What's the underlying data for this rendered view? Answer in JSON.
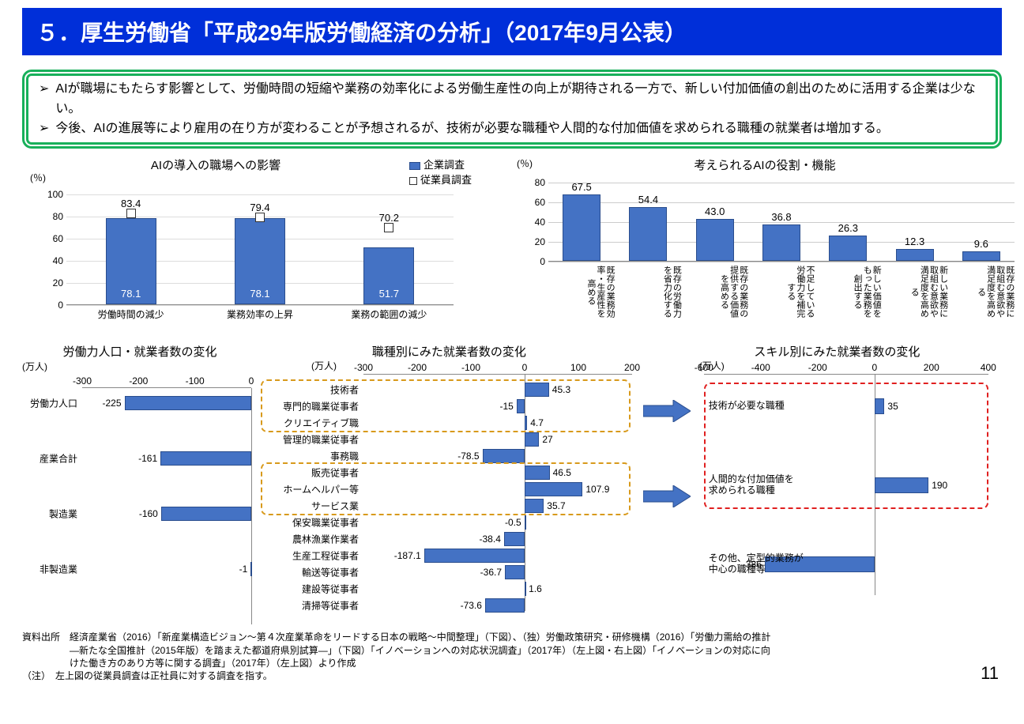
{
  "title": "５．厚生労働省「平成29年版労働経済の分析」（2017年9月公表）",
  "summary": [
    "AIが職場にもたらす影響として、労働時間の短縮や業務の効率化による労働生産性の向上が期待される一方で、新しい付加価値の創出のために活用する企業は少ない。",
    "今後、AIの進展等により雇用の在り方が変わることが予想されるが、技術が必要な職種や人間的な付加価値を求められる職種の就業者は増加する。"
  ],
  "colors": {
    "bar": "#4472c4",
    "bar_border": "#2a4d8d",
    "title_bg": "#002fd9",
    "green_border": "#18b05a",
    "dash_orange": "#d89a1c",
    "dash_red": "#e02020"
  },
  "chart1": {
    "title": "AIの導入の職場への影響",
    "unit": "(％)",
    "legend": {
      "bar": "企業調査",
      "marker": "従業員調査"
    },
    "ymax": 100,
    "ytick_step": 20,
    "categories": [
      "労働時間の減少",
      "業務効率の上昇",
      "業務の範囲の減少"
    ],
    "bar_values": [
      78.1,
      78.1,
      51.7
    ],
    "marker_values": [
      83.4,
      79.4,
      70.2
    ]
  },
  "chart2": {
    "title": "考えられるAIの役割・機能",
    "unit": "(％)",
    "ymax": 80,
    "ytick_step": 20,
    "categories": [
      "既存の業務効率・生産性を高める",
      "既存の労働力を省力化する",
      "既存の業務の提供する価値を高める",
      "不足している労働力を補完する",
      "新しい価値をもった業務を創出する",
      "新しい業務に取組む意欲や満足度を高める",
      "既存の業務に取組む意欲や満足度を高める"
    ],
    "values": [
      67.5,
      54.4,
      43.0,
      36.8,
      26.3,
      12.3,
      9.6
    ]
  },
  "chart3": {
    "title": "労働力人口・就業者数の変化",
    "unit": "(万人)",
    "xmin": -300,
    "xmax": 0,
    "xtick_step": 100,
    "rows": [
      {
        "label": "労働力人口",
        "value": -225
      },
      {
        "label": "産業合計",
        "value": -161
      },
      {
        "label": "製造業",
        "value": -160
      },
      {
        "label": "非製造業",
        "value": -1
      }
    ]
  },
  "chart4": {
    "title": "職種別にみた就業者数の変化",
    "unit": "(万人)",
    "xmin": -300,
    "xmax": 200,
    "xtick_step": 100,
    "rows": [
      {
        "label": "技術者",
        "value": 45.3
      },
      {
        "label": "専門的職業従事者",
        "value": -15.0
      },
      {
        "label": "クリエイティブ職",
        "value": 4.7
      },
      {
        "label": "管理的職業従事者",
        "value": 27.0
      },
      {
        "label": "事務職",
        "value": -78.5
      },
      {
        "label": "販売従事者",
        "value": 46.5
      },
      {
        "label": "ホームヘルパー等",
        "value": 107.9
      },
      {
        "label": "サービス業",
        "value": 35.7
      },
      {
        "label": "保安職業従事者",
        "value": -0.5
      },
      {
        "label": "農林漁業作業者",
        "value": -38.4
      },
      {
        "label": "生産工程従事者",
        "value": -187.1
      },
      {
        "label": "輸送等従事者",
        "value": -36.7
      },
      {
        "label": "建設等従事者",
        "value": 1.6
      },
      {
        "label": "清掃等従事者",
        "value": -73.6
      }
    ],
    "highlight_groups": [
      {
        "start": 0,
        "end": 2
      },
      {
        "start": 5,
        "end": 7
      }
    ]
  },
  "chart5": {
    "title": "スキル別にみた就業者数の変化",
    "unit": "(万人)",
    "xmin": -600,
    "xmax": 400,
    "xtick_step": 200,
    "rows": [
      {
        "label": "技術が必要な職種",
        "value": 35
      },
      {
        "label": "人間的な付加価値を\n求められる職種",
        "value": 190
      },
      {
        "label": "その他、定型的業務が\n中心の職種等",
        "value": -386
      }
    ],
    "highlight_group": {
      "start": 0,
      "end": 1
    }
  },
  "footnote_lines": [
    "資料出所　経済産業省（2016）「新産業構造ビジョン～第４次産業革命をリードする日本の戦略～中間整理」（下図）、（独）労働政策研究・研修機構（2016）「労働力需給の推計",
    "　　　　　―新たな全国推計（2015年版）を踏まえた都道府県別試算―」（下図）「イノベーションへの対応状況調査」（2017年）（左上図・右上図）「イノベーションの対応に向",
    "　　　　　けた働き方のあり方等に関する調査」（2017年）（左上図）より作成",
    "（注）　左上図の従業員調査は正社員に対する調査を指す。"
  ],
  "page_number": "11"
}
